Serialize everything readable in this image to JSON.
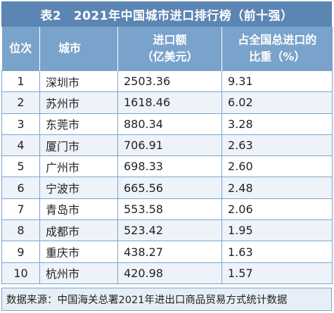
{
  "title": "表2　2021年中国城市进口排行榜（前十强）",
  "headers": {
    "rank": "位次",
    "city": "城市",
    "import_value_line1": "进口额",
    "import_value_line2": "（亿美元）",
    "share_line1": "占全国总进口的",
    "share_line2": "比重（%）"
  },
  "rows": [
    {
      "rank": "1",
      "city": "深圳市",
      "value": "2503.36",
      "share": "9.31"
    },
    {
      "rank": "2",
      "city": "苏州市",
      "value": "1618.46",
      "share": "6.02"
    },
    {
      "rank": "3",
      "city": "东莞市",
      "value": "880.34",
      "share": "3.28"
    },
    {
      "rank": "4",
      "city": "厦门市",
      "value": "706.91",
      "share": "2.63"
    },
    {
      "rank": "5",
      "city": "广州市",
      "value": "698.33",
      "share": "2.60"
    },
    {
      "rank": "6",
      "city": "宁波市",
      "value": "665.56",
      "share": "2.48"
    },
    {
      "rank": "7",
      "city": "青岛市",
      "value": "553.58",
      "share": "2.06"
    },
    {
      "rank": "8",
      "city": "成都市",
      "value": "523.42",
      "share": "1.95"
    },
    {
      "rank": "9",
      "city": "重庆市",
      "value": "438.27",
      "share": "1.63"
    },
    {
      "rank": "10",
      "city": "杭州市",
      "value": "420.98",
      "share": "1.57"
    }
  ],
  "footer": "数据来源：中国海关总署2021年进出口商品贸易方式统计数据"
}
